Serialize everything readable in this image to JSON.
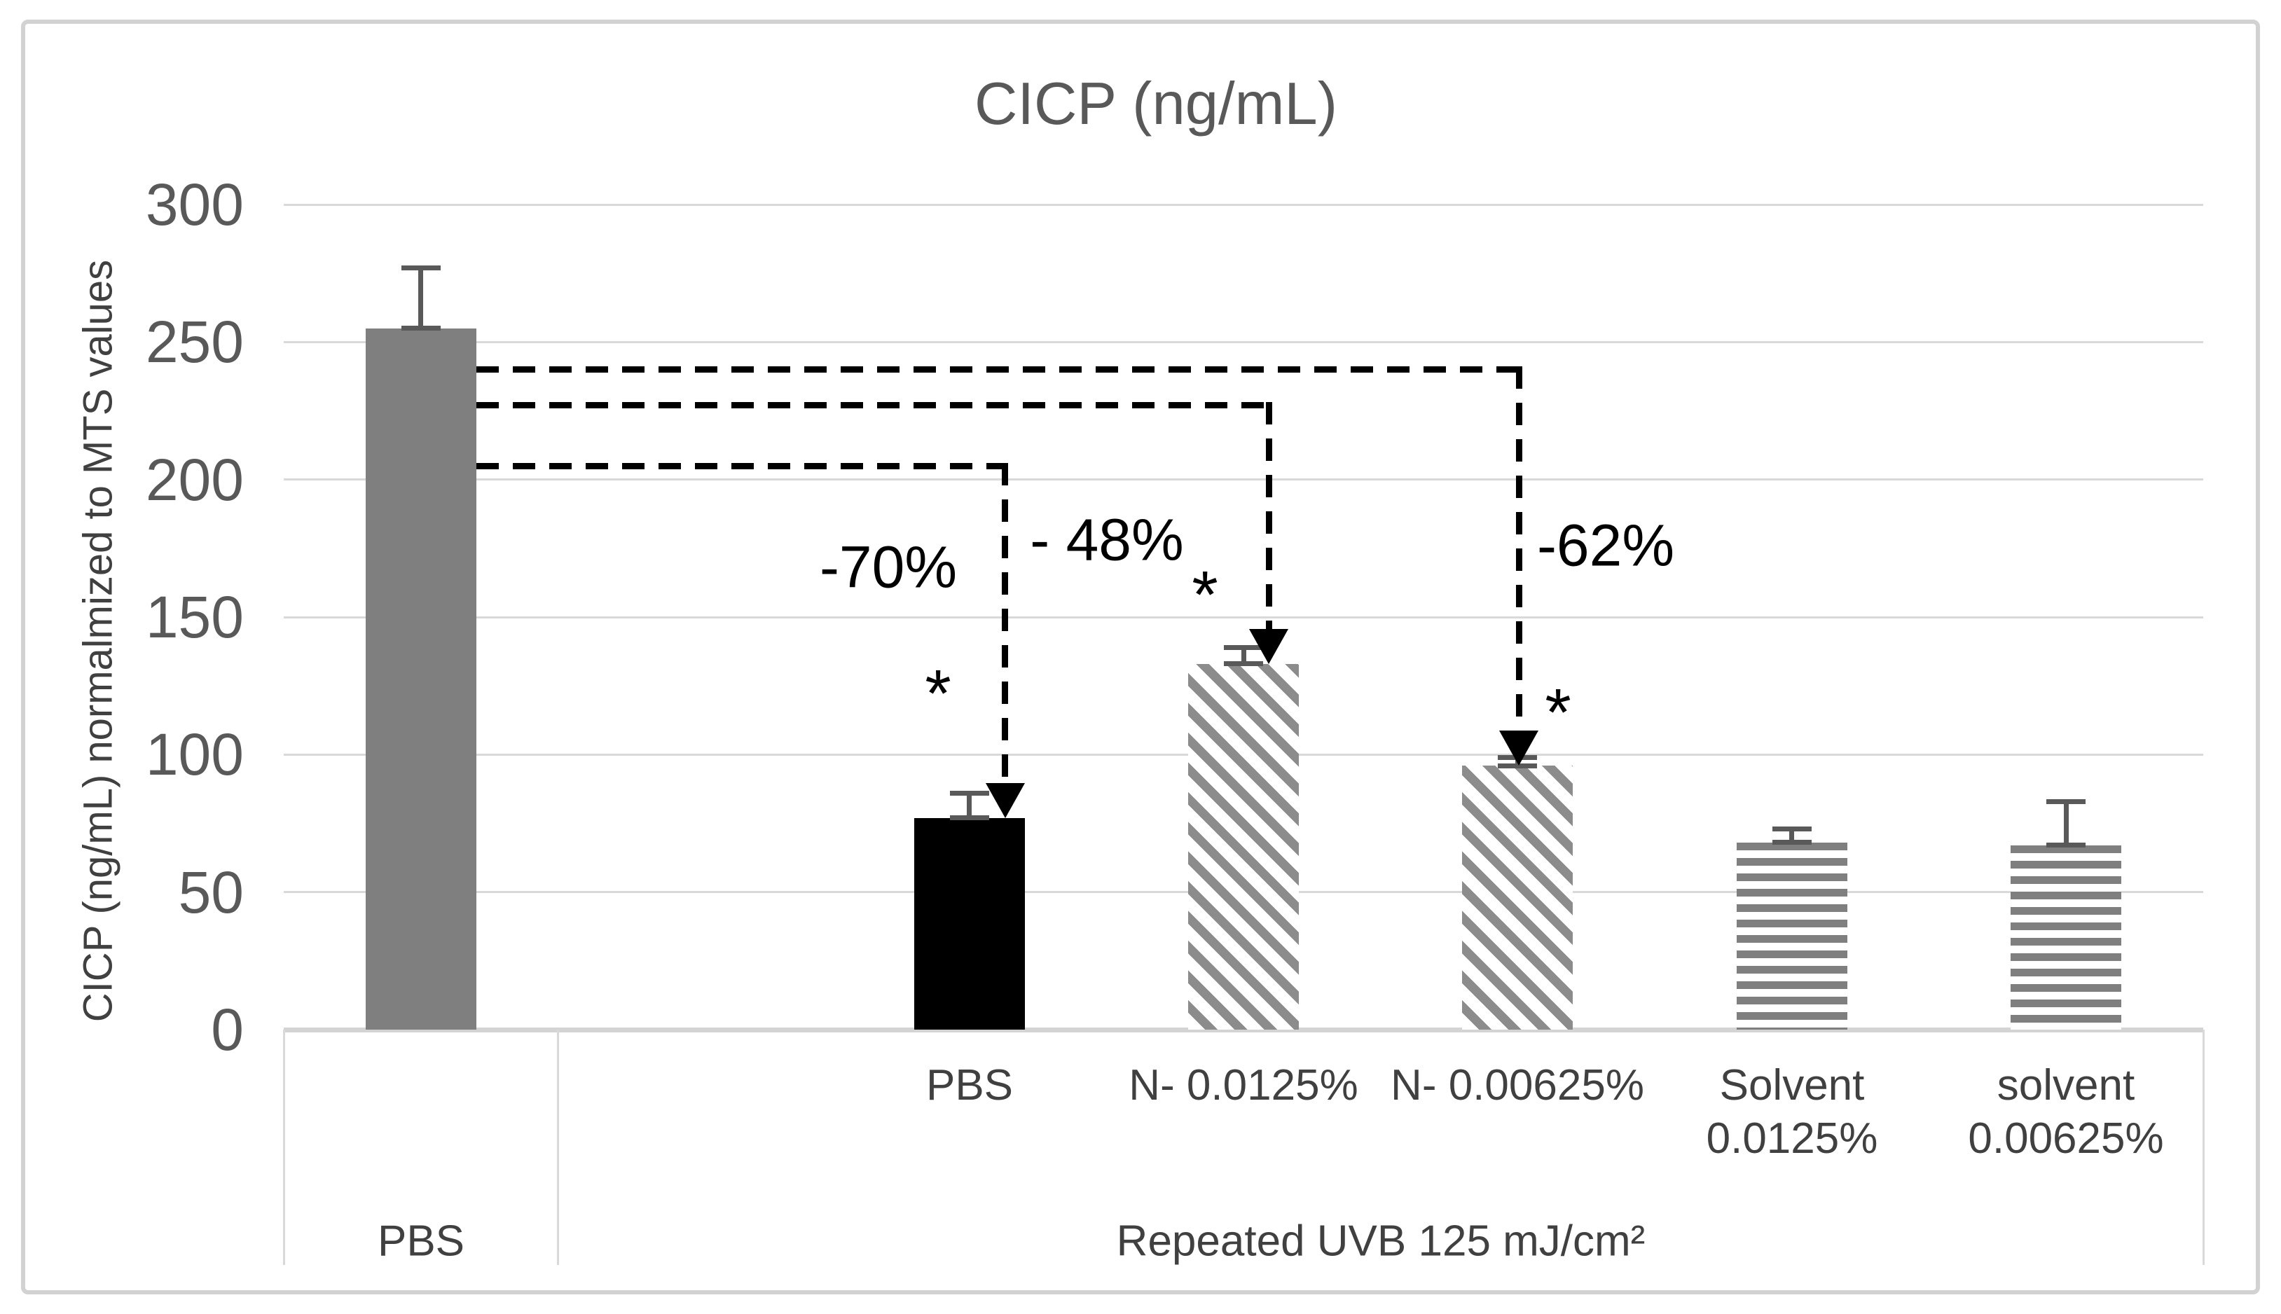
{
  "chart_data": {
    "type": "bar",
    "title": "CICP (ng/mL)",
    "xlabel": "",
    "ylabel": "CICP (ng/mL) normalmized to MTS values",
    "ylim": [
      0,
      300
    ],
    "ytick_interval": 50,
    "yticks": [
      0,
      50,
      100,
      150,
      200,
      250,
      300
    ],
    "grid": true,
    "legend": false,
    "categories": [
      "PBS",
      "PBS",
      "N- 0.0125%",
      "N- 0.00625%",
      "Solvent 0.0125%",
      "solvent 0.00625%"
    ],
    "values": [
      255,
      77,
      133,
      96,
      68,
      67
    ],
    "errors_plus": [
      22,
      9,
      6,
      3,
      5,
      16
    ],
    "bars": [
      {
        "tick_lines": [],
        "value": 255,
        "error_plus": 22,
        "style": "solid-gray",
        "slot": 0
      },
      {
        "tick_lines": [
          "PBS"
        ],
        "value": 77,
        "error_plus": 9,
        "style": "solid-black",
        "slot": 2
      },
      {
        "tick_lines": [
          "N- 0.0125%"
        ],
        "value": 133,
        "error_plus": 6,
        "style": "diagonal-hatch",
        "slot": 3
      },
      {
        "tick_lines": [
          "N- 0.00625%"
        ],
        "value": 96,
        "error_plus": 3,
        "style": "diagonal-hatch",
        "slot": 4
      },
      {
        "tick_lines": [
          "Solvent",
          "0.0125%"
        ],
        "value": 68,
        "error_plus": 5,
        "style": "horizontal-stripes",
        "slot": 5
      },
      {
        "tick_lines": [
          "solvent",
          "0.00625%"
        ],
        "value": 67,
        "error_plus": 16,
        "style": "horizontal-stripes",
        "slot": 6
      }
    ],
    "total_slots": 7,
    "groups": [
      {
        "label": "PBS",
        "slot_start": 0,
        "slot_end": 0
      },
      {
        "label": "Repeated UVB 125 mJ/cm²",
        "slot_start": 1,
        "slot_end": 6
      }
    ],
    "annotations": [
      {
        "label": "-70%",
        "level": 205,
        "source_bar": 0,
        "target_bar": 1,
        "line_x_offset": 51,
        "label_x": 1268,
        "label_level": 168
      },
      {
        "label": "- 48%",
        "level": 227,
        "source_bar": 0,
        "target_bar": 2,
        "line_x_offset": 36,
        "label_x": 1580,
        "label_level": 178
      },
      {
        "label": "-62%",
        "level": 240,
        "source_bar": 0,
        "target_bar": 3,
        "line_x_offset": 2,
        "label_x": 2292,
        "label_level": 176
      }
    ],
    "significance_markers": [
      {
        "symbol": "*",
        "target_bar": 1,
        "x_offset": -45,
        "level": 122
      },
      {
        "symbol": "*",
        "target_bar": 2,
        "x_offset": -55,
        "level": 158
      },
      {
        "symbol": "*",
        "target_bar": 3,
        "x_offset": 58,
        "level": 115
      }
    ]
  },
  "colors": {
    "bar_gray": "#7f7f7f",
    "bar_black": "#000000",
    "hatch_gray": "#8c8c8c",
    "stripe_gray": "#7f7f7f",
    "gridline": "#d9d9d9",
    "axis_text": "#595959",
    "label_text": "#404040",
    "annotation_text": "#000000",
    "error_bar": "#595959",
    "figure_border": "#d2d2d2",
    "background": "#ffffff"
  }
}
